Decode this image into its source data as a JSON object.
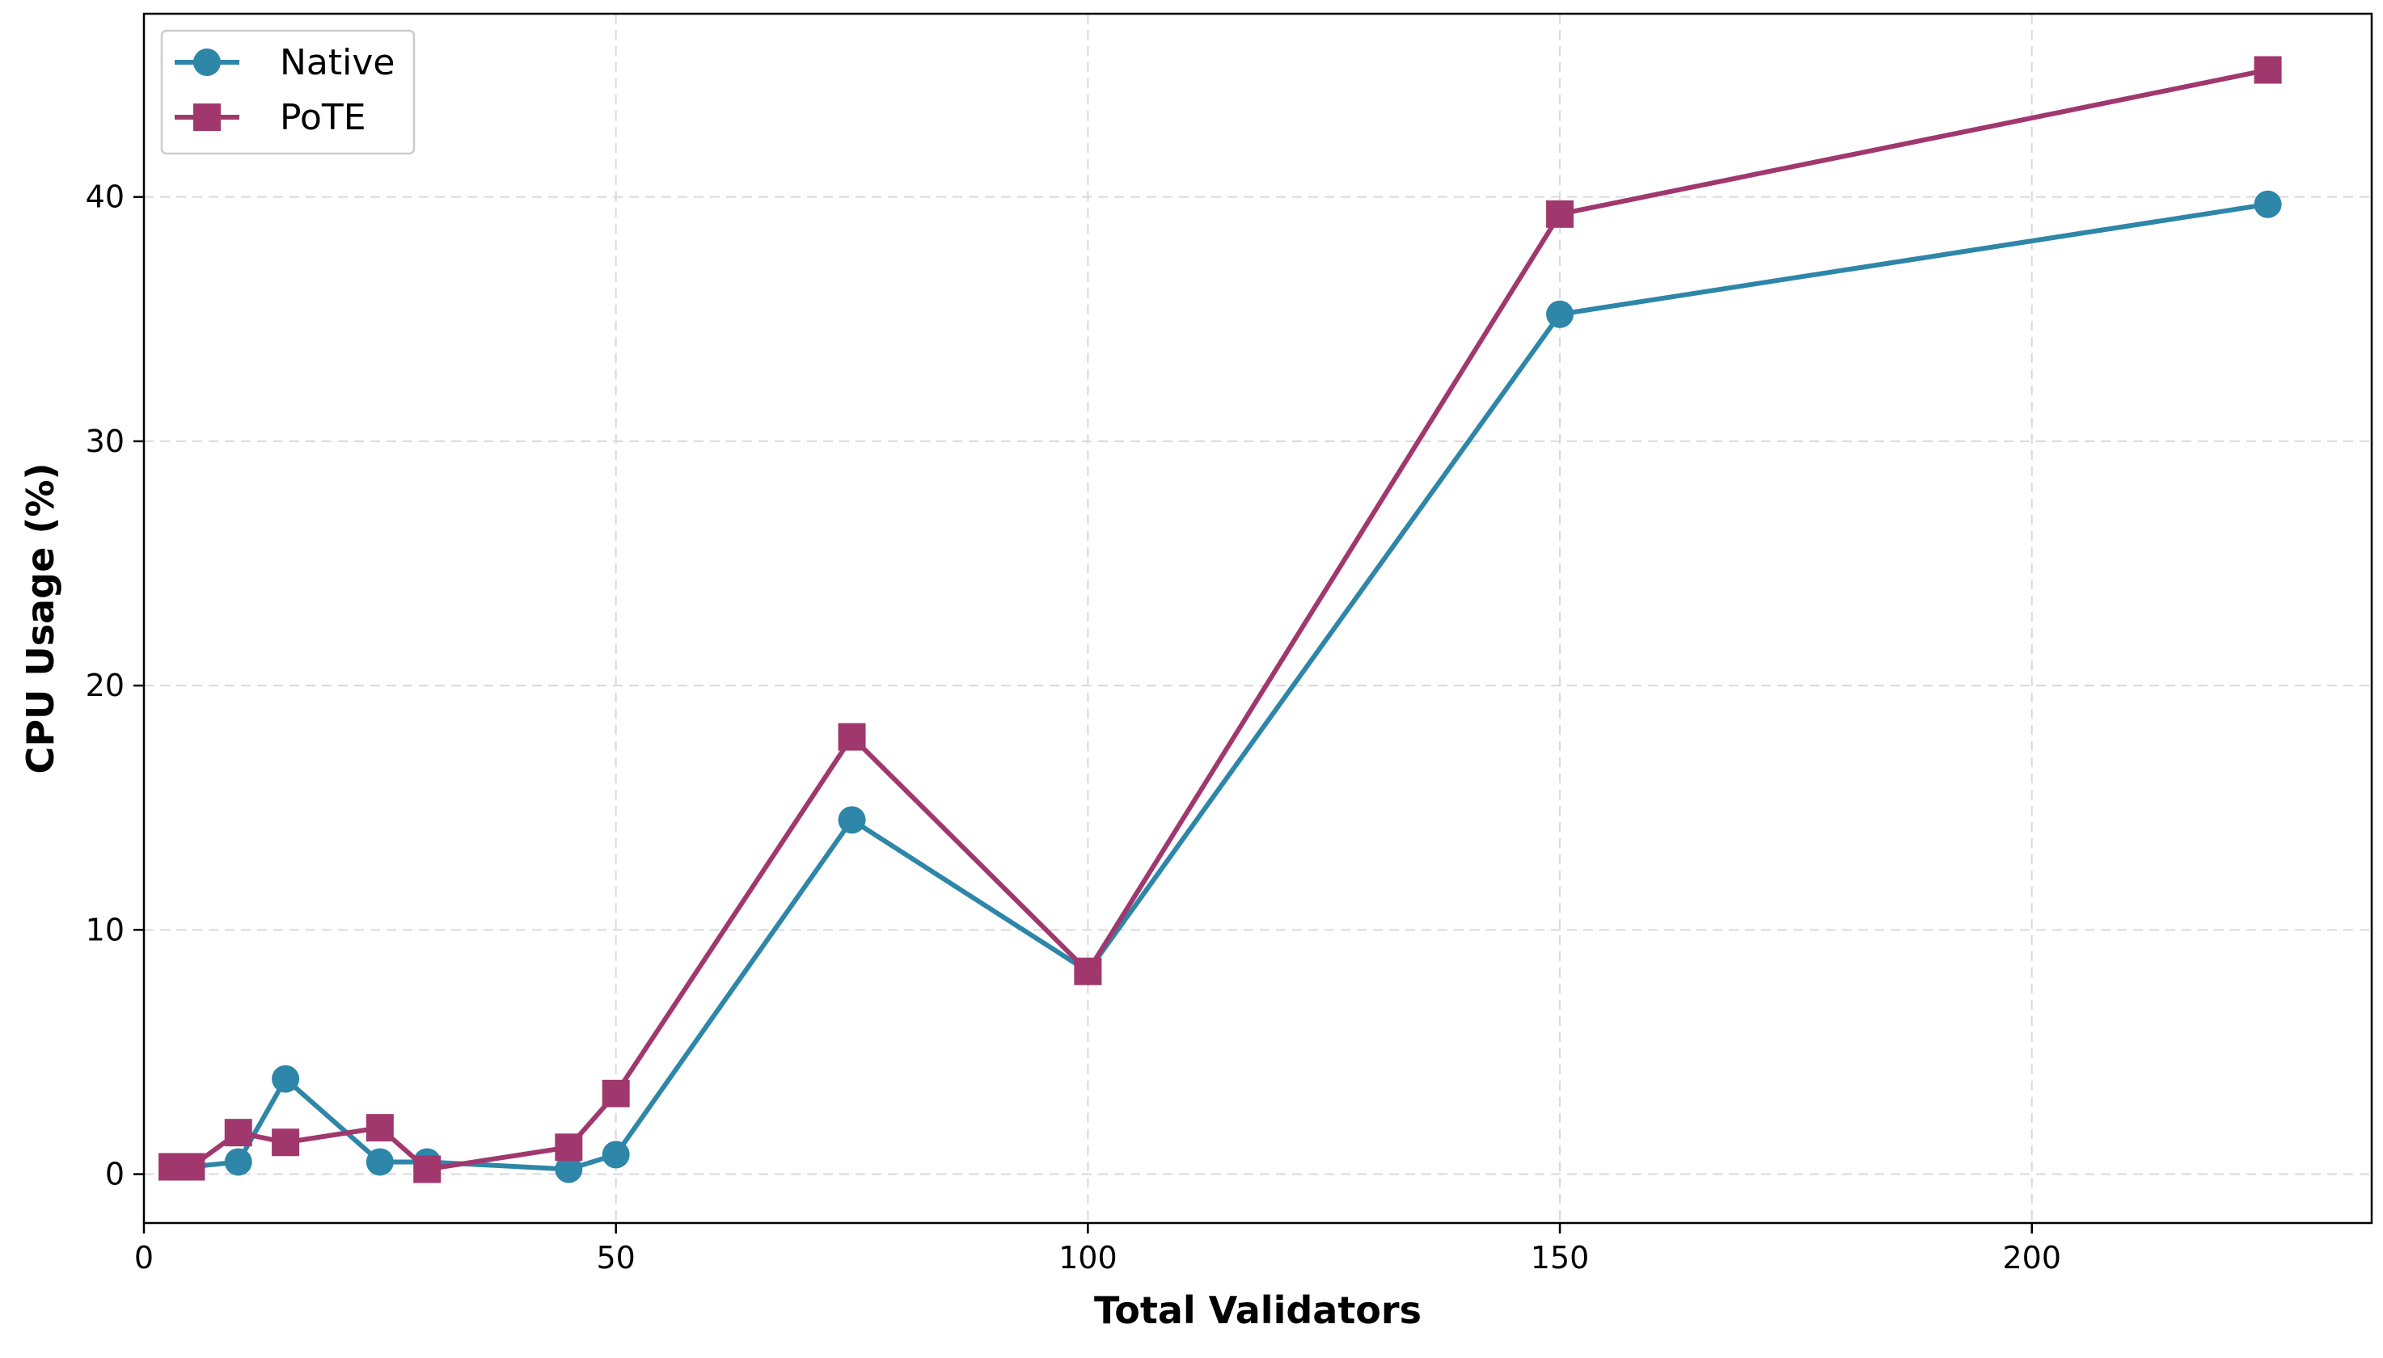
{
  "chart_data": {
    "type": "line",
    "title": "",
    "xlabel": "Total Validators",
    "ylabel": "CPU Usage (%)",
    "xlim": [
      0,
      236
    ],
    "ylim": [
      -2,
      47.5
    ],
    "xticks": [
      0,
      50,
      100,
      150,
      200
    ],
    "yticks": [
      0,
      10,
      20,
      30,
      40
    ],
    "grid": true,
    "legend": "top-left",
    "series": [
      {
        "name": "Native",
        "color": "#2e86a8",
        "marker": "circle",
        "x": [
          3,
          5,
          10,
          15,
          25,
          30,
          45,
          50,
          75,
          100,
          150,
          225
        ],
        "y": [
          0.3,
          0.3,
          0.5,
          3.9,
          0.5,
          0.5,
          0.2,
          0.8,
          14.5,
          8.3,
          35.2,
          39.7
        ]
      },
      {
        "name": "PoTE",
        "color": "#a0386e",
        "marker": "square",
        "x": [
          3,
          5,
          10,
          15,
          25,
          30,
          45,
          50,
          75,
          100,
          150,
          225
        ],
        "y": [
          0.3,
          0.3,
          1.7,
          1.3,
          1.9,
          0.2,
          1.1,
          3.3,
          17.9,
          8.3,
          39.3,
          45.2
        ]
      }
    ]
  }
}
